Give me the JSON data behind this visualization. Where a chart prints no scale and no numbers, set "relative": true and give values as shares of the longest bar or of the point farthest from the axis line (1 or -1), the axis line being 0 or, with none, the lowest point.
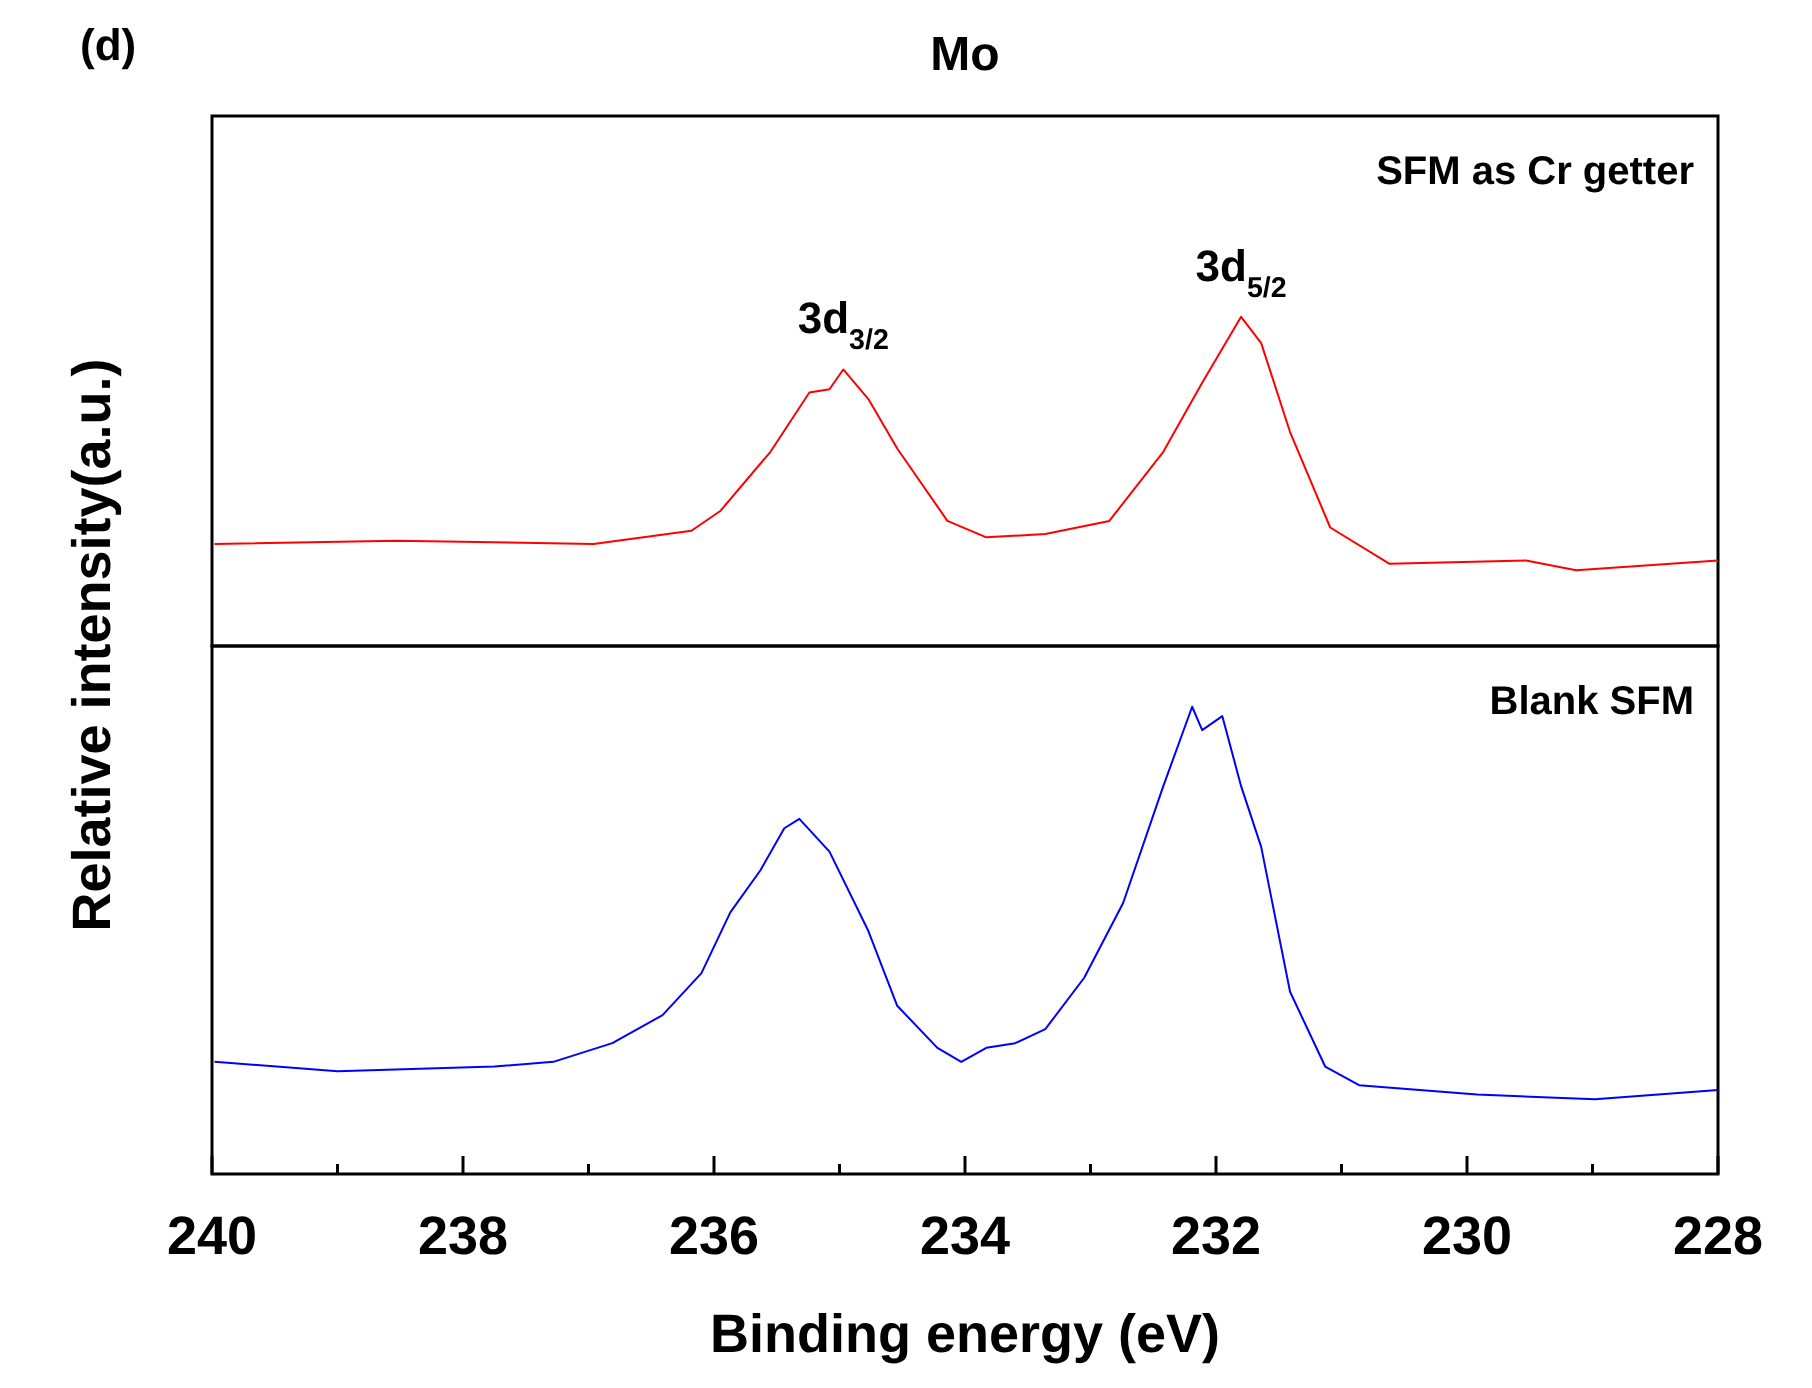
{
  "chart_data": [
    {
      "type": "line",
      "title": "Mo",
      "relative": true,
      "xlim": [
        240,
        228
      ],
      "tick_labels": false,
      "annotations": [
        "(d)",
        "SFM as Cr getter",
        {
          "text": "3d$_{3/2}$",
          "x": 234.97,
          "y": 0.84
        },
        {
          "text": "3d$_{5/2}$",
          "x": 231.8,
          "y": 1.0
        }
      ],
      "series": [
        {
          "color": "#ff0000",
          "x": [
            239.98,
            238.53,
            236.96,
            236.18,
            235.95,
            235.55,
            235.24,
            235.08,
            234.97,
            234.77,
            234.54,
            234.14,
            233.83,
            233.36,
            232.85,
            232.42,
            232.11,
            231.8,
            231.64,
            231.41,
            231.09,
            230.62,
            229.53,
            229.13,
            228.0
          ],
          "values": [
            0.31,
            0.32,
            0.31,
            0.35,
            0.41,
            0.59,
            0.77,
            0.78,
            0.84,
            0.75,
            0.6,
            0.38,
            0.33,
            0.34,
            0.38,
            0.59,
            0.8,
            1.0,
            0.92,
            0.65,
            0.36,
            0.25,
            0.26,
            0.23,
            0.26
          ]
        }
      ]
    },
    {
      "type": "line",
      "relative": true,
      "xlim": [
        240,
        228
      ],
      "tick_labels": "x",
      "xlabel": "Binding energy (eV)",
      "ylabel": "Relative intensity(a.u.)",
      "xticks": [
        240,
        {
          "value": 239,
          "label": null
        },
        238,
        {
          "value": 237,
          "label": null
        },
        236,
        {
          "value": 235,
          "label": null
        },
        234,
        {
          "value": 233,
          "label": null
        },
        232,
        {
          "value": 231,
          "label": null
        },
        230,
        {
          "value": 229,
          "label": null
        },
        228
      ],
      "annotations": [
        "Blank SFM"
      ],
      "series": [
        {
          "color": "#0000ff",
          "x": [
            239.98,
            239.0,
            237.75,
            237.28,
            236.81,
            236.41,
            236.1,
            235.87,
            235.63,
            235.44,
            235.32,
            235.08,
            234.77,
            234.54,
            234.22,
            234.03,
            233.83,
            233.6,
            233.36,
            233.05,
            232.74,
            232.42,
            232.19,
            232.11,
            231.95,
            231.8,
            231.64,
            231.41,
            231.13,
            230.86,
            229.92,
            228.98,
            228.0
          ],
          "values": [
            0.24,
            0.22,
            0.23,
            0.24,
            0.28,
            0.34,
            0.43,
            0.56,
            0.65,
            0.74,
            0.76,
            0.69,
            0.52,
            0.36,
            0.27,
            0.24,
            0.27,
            0.28,
            0.31,
            0.42,
            0.58,
            0.83,
            1.0,
            0.95,
            0.98,
            0.83,
            0.7,
            0.39,
            0.23,
            0.19,
            0.17,
            0.16,
            0.18
          ]
        }
      ]
    }
  ]
}
